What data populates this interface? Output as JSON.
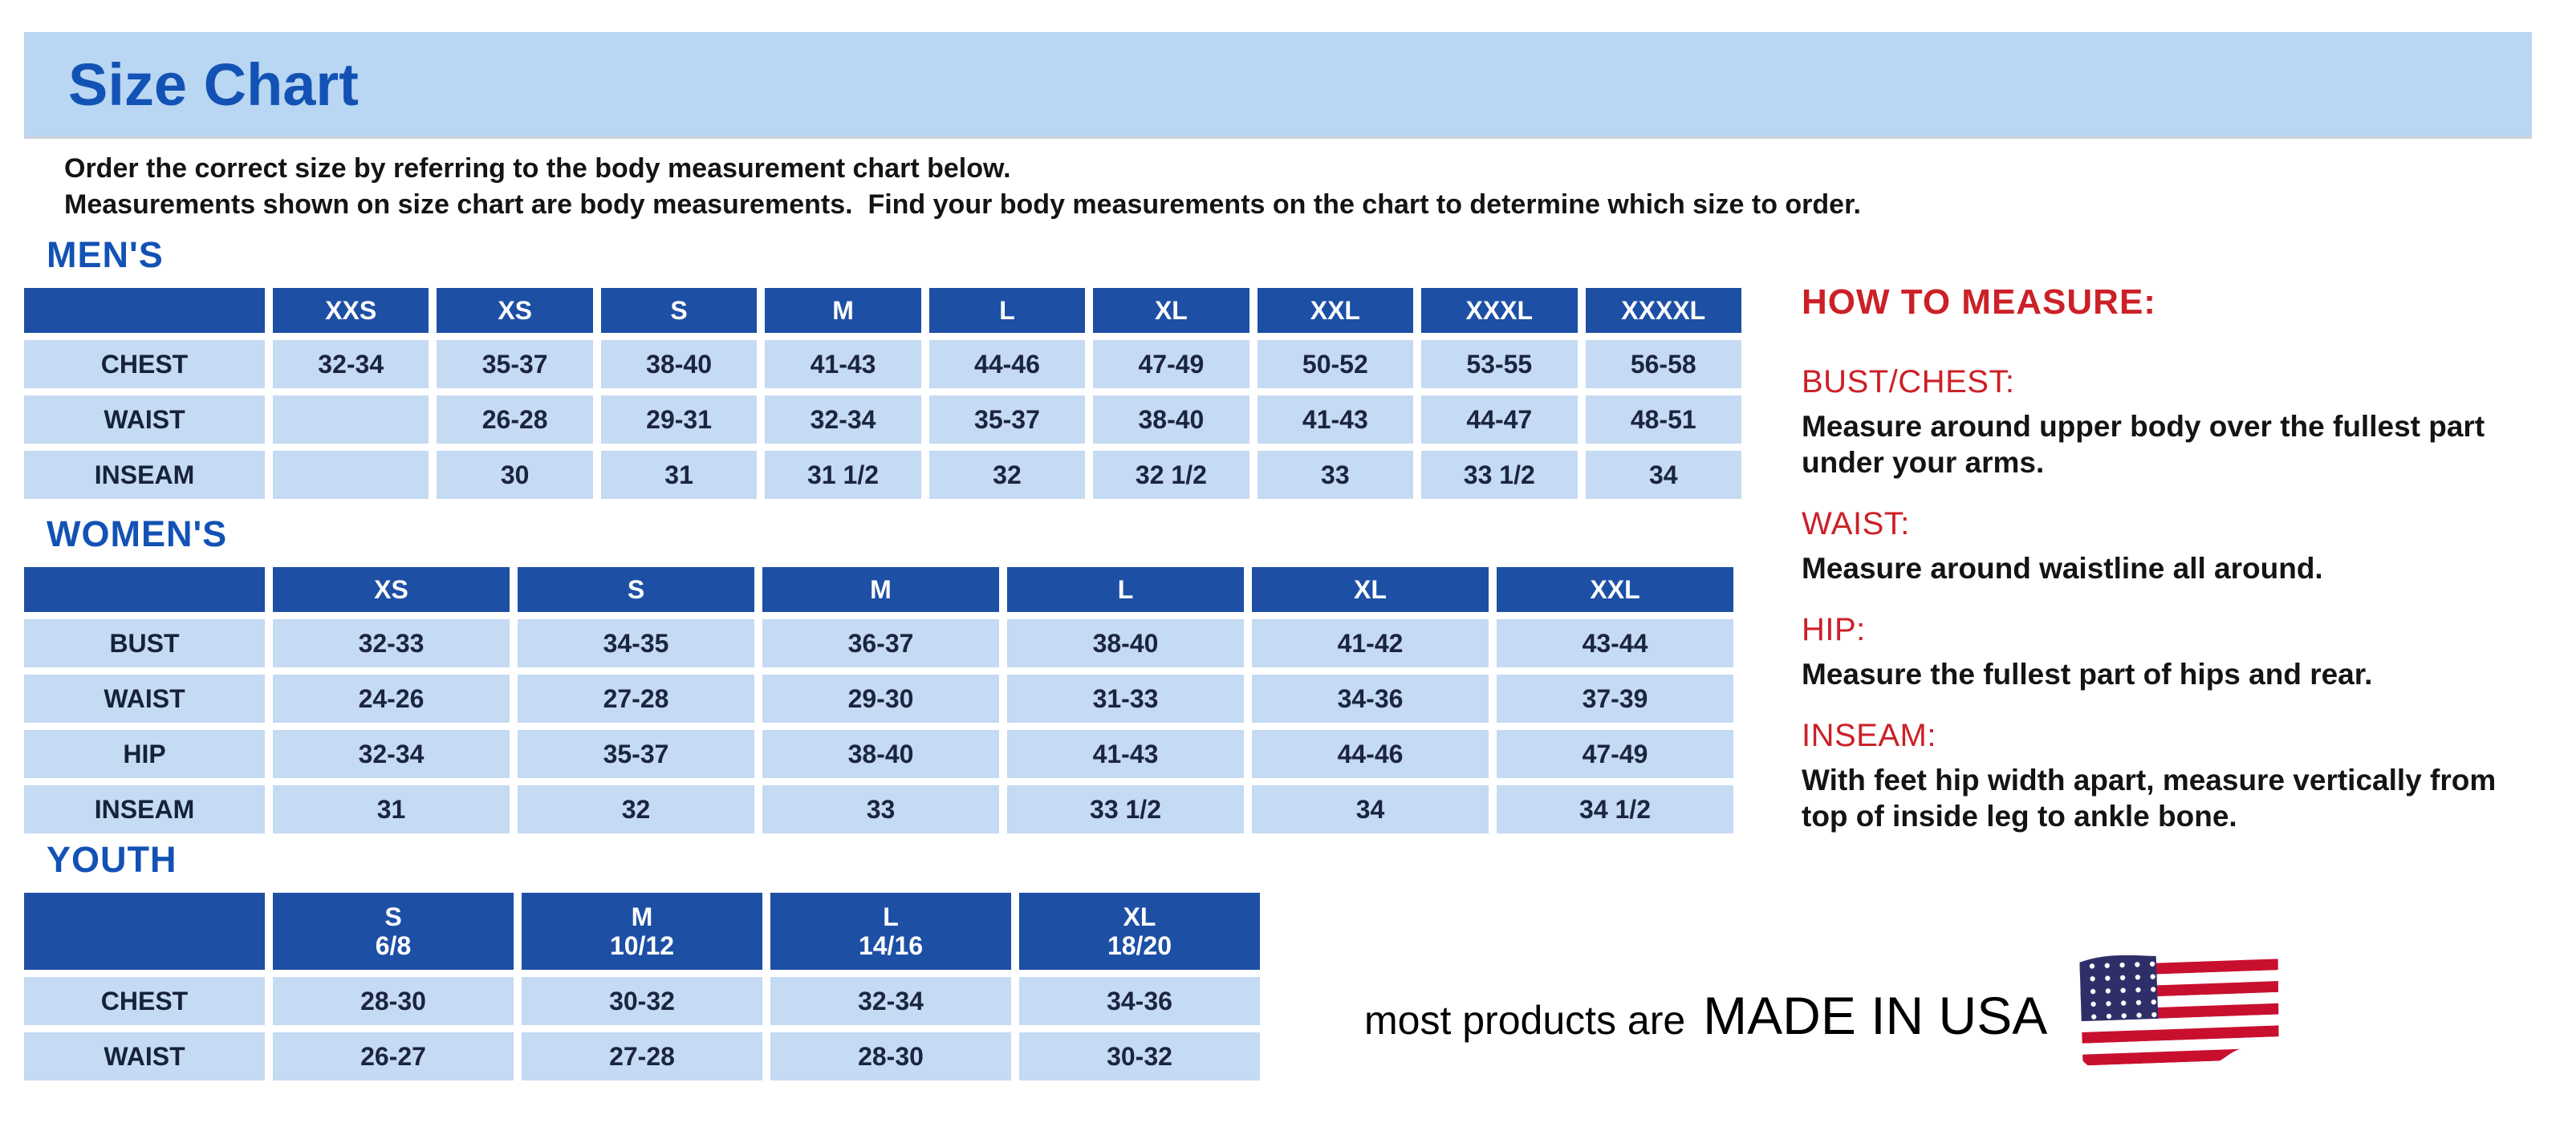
{
  "header": {
    "title": "Size Chart"
  },
  "intro": {
    "line1": "Order the correct size by referring to the body measurement chart below.",
    "line2": "Measurements shown on size chart are body measurements.  Find your body measurements on the chart to determine which size to order."
  },
  "tables": {
    "mens": {
      "title": "MEN'S",
      "columns": [
        "",
        "XXS",
        "XS",
        "S",
        "M",
        "L",
        "XL",
        "XXL",
        "XXXL",
        "XXXXL"
      ],
      "rows": [
        {
          "label": "CHEST",
          "values": [
            "32-34",
            "35-37",
            "38-40",
            "41-43",
            "44-46",
            "47-49",
            "50-52",
            "53-55",
            "56-58"
          ]
        },
        {
          "label": "WAIST",
          "values": [
            "",
            "26-28",
            "29-31",
            "32-34",
            "35-37",
            "38-40",
            "41-43",
            "44-47",
            "48-51"
          ]
        },
        {
          "label": "INSEAM",
          "values": [
            "",
            "30",
            "31",
            "31 1/2",
            "32",
            "32 1/2",
            "33",
            "33 1/2",
            "34"
          ]
        }
      ]
    },
    "womens": {
      "title": "WOMEN'S",
      "columns": [
        "",
        "XS",
        "S",
        "M",
        "L",
        "XL",
        "XXL"
      ],
      "rows": [
        {
          "label": "BUST",
          "values": [
            "32-33",
            "34-35",
            "36-37",
            "38-40",
            "41-42",
            "43-44"
          ]
        },
        {
          "label": "WAIST",
          "values": [
            "24-26",
            "27-28",
            "29-30",
            "31-33",
            "34-36",
            "37-39"
          ]
        },
        {
          "label": "HIP",
          "values": [
            "32-34",
            "35-37",
            "38-40",
            "41-43",
            "44-46",
            "47-49"
          ]
        },
        {
          "label": "INSEAM",
          "values": [
            "31",
            "32",
            "33",
            "33 1/2",
            "34",
            "34 1/2"
          ]
        }
      ]
    },
    "youth": {
      "title": "YOUTH",
      "columns": [
        "",
        "S\n6/8",
        "M\n10/12",
        "L\n14/16",
        "XL\n18/20"
      ],
      "rows": [
        {
          "label": "CHEST",
          "values": [
            "28-30",
            "30-32",
            "32-34",
            "34-36"
          ]
        },
        {
          "label": "WAIST",
          "values": [
            "26-27",
            "27-28",
            "28-30",
            "30-32"
          ]
        }
      ]
    }
  },
  "how_to_measure": {
    "title": "HOW TO MEASURE:",
    "sections": [
      {
        "heading": "BUST/CHEST:",
        "text": "Measure around upper body over the fullest part under your arms."
      },
      {
        "heading": "WAIST:",
        "text": "Measure around waistline all around."
      },
      {
        "heading": "HIP:",
        "text": "Measure the fullest part of hips and rear."
      },
      {
        "heading": "INSEAM:",
        "text": "With feet hip width apart, measure vertically from top of inside leg to ankle bone."
      }
    ]
  },
  "footer": {
    "prefix": "most products are",
    "emphasis": "MADE IN USA",
    "flag_icon": "us-flag-icon"
  },
  "colors": {
    "banner_blue": "#b9d6f2",
    "accent_blue": "#1352b5",
    "table_header_blue": "#1d4fa5",
    "cell_blue": "#c5daf3",
    "heading_red": "#cc2027",
    "flag_red": "#c8102e",
    "flag_navy": "#2e2e68",
    "text_dark": "#1b2440"
  }
}
